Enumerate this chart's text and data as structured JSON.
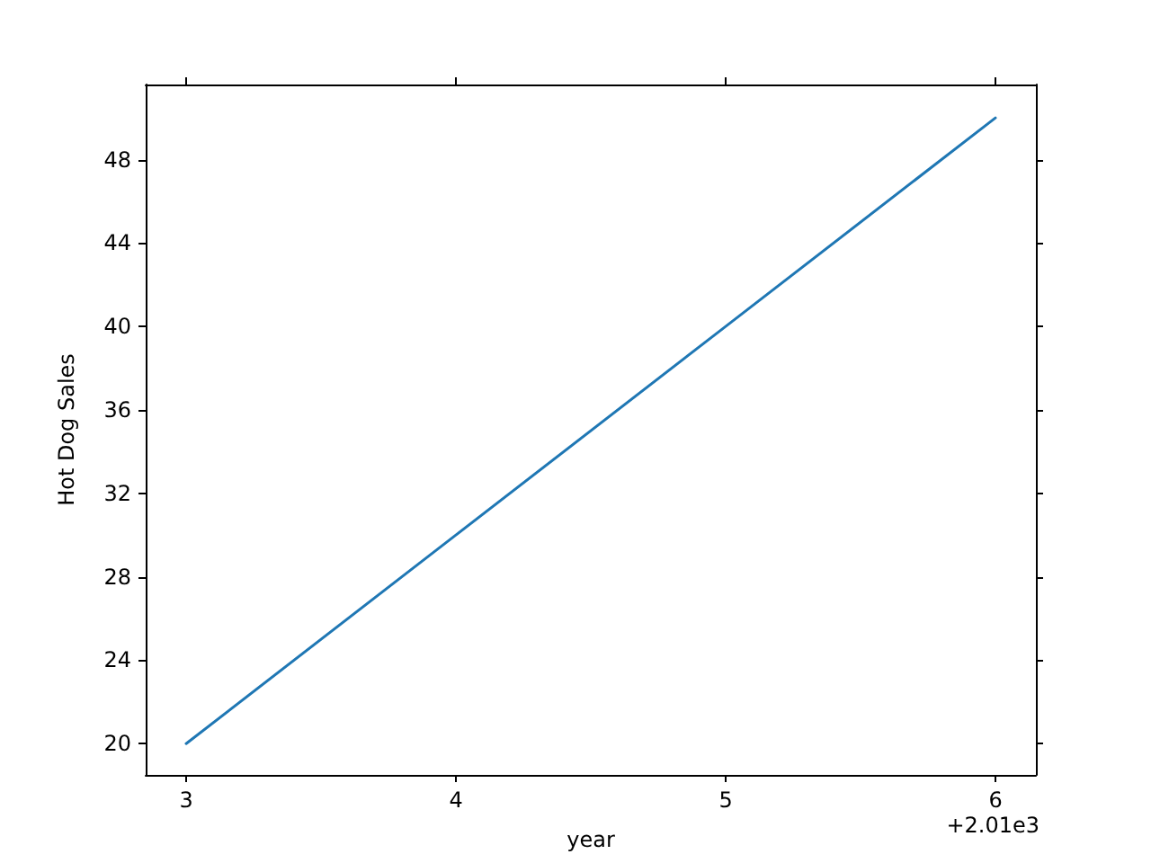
{
  "chart_data": {
    "type": "line",
    "xlabel": "year",
    "ylabel": "Hot Dog Sales",
    "x": [
      3,
      4,
      5,
      6
    ],
    "series": [
      {
        "color": "#1f77b4",
        "values": [
          20,
          30,
          40,
          50
        ]
      }
    ],
    "xlim": [
      2.85,
      6.15
    ],
    "ylim": [
      18.5,
      51.6
    ],
    "xticks": [
      3,
      4,
      5,
      6
    ],
    "yticks": [
      20,
      24,
      28,
      32,
      36,
      40,
      44,
      48
    ],
    "annotations": [
      "+2.01e3"
    ],
    "grid": false,
    "marker": "none",
    "line_style": "solid"
  }
}
